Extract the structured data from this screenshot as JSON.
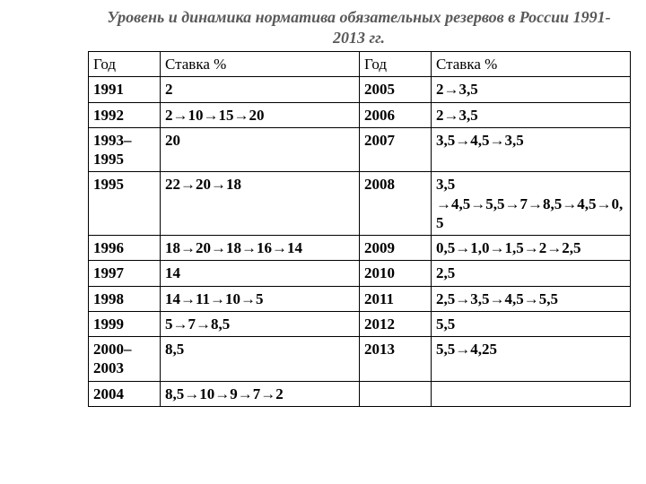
{
  "title": "Уровень и динамика норматива обязательных резервов в России 1991-2013 гг.",
  "headers": {
    "year": "Год",
    "rate": "Ставка %"
  },
  "rows": [
    {
      "y1": "1991",
      "r1": "2",
      "y2": "2005",
      "r2": "2→3,5"
    },
    {
      "y1": "1992",
      "r1": "2→10→15→20",
      "y2": "2006",
      "r2": "2→3,5"
    },
    {
      "y1": "1993–1995",
      "r1": "20",
      "y2": "2007",
      "r2": "3,5→4,5→3,5"
    },
    {
      "y1": "1995",
      "r1": "22→20→18",
      "y2": "2008",
      "r2": "3,5 →4,5→5,5→7→8,5→4,5→0,5"
    },
    {
      "y1": "1996",
      "r1": "18→20→18→16→14",
      "y2": "2009",
      "r2": "0,5→1,0→1,5→2→2,5"
    },
    {
      "y1": "1997",
      "r1": "14",
      "y2": "2010",
      "r2": "2,5"
    },
    {
      "y1": "1998",
      "r1": "14→11→10→5",
      "y2": "2011",
      "r2": "2,5→3,5→4,5→5,5"
    },
    {
      "y1": "1999",
      "r1": "5→7→8,5",
      "y2": "2012",
      "r2": "5,5"
    },
    {
      "y1": "2000–2003",
      "r1": "8,5",
      "y2": "2013",
      "r2": "5,5→4,25"
    },
    {
      "y1": "2004",
      "r1": "8,5→10→9→7→2",
      "y2": "",
      "r2": ""
    }
  ],
  "style": {
    "title_color": "#595959",
    "border_color": "#000000",
    "font_family": "Times New Roman",
    "title_fontsize": 18,
    "cell_fontsize": 17
  }
}
